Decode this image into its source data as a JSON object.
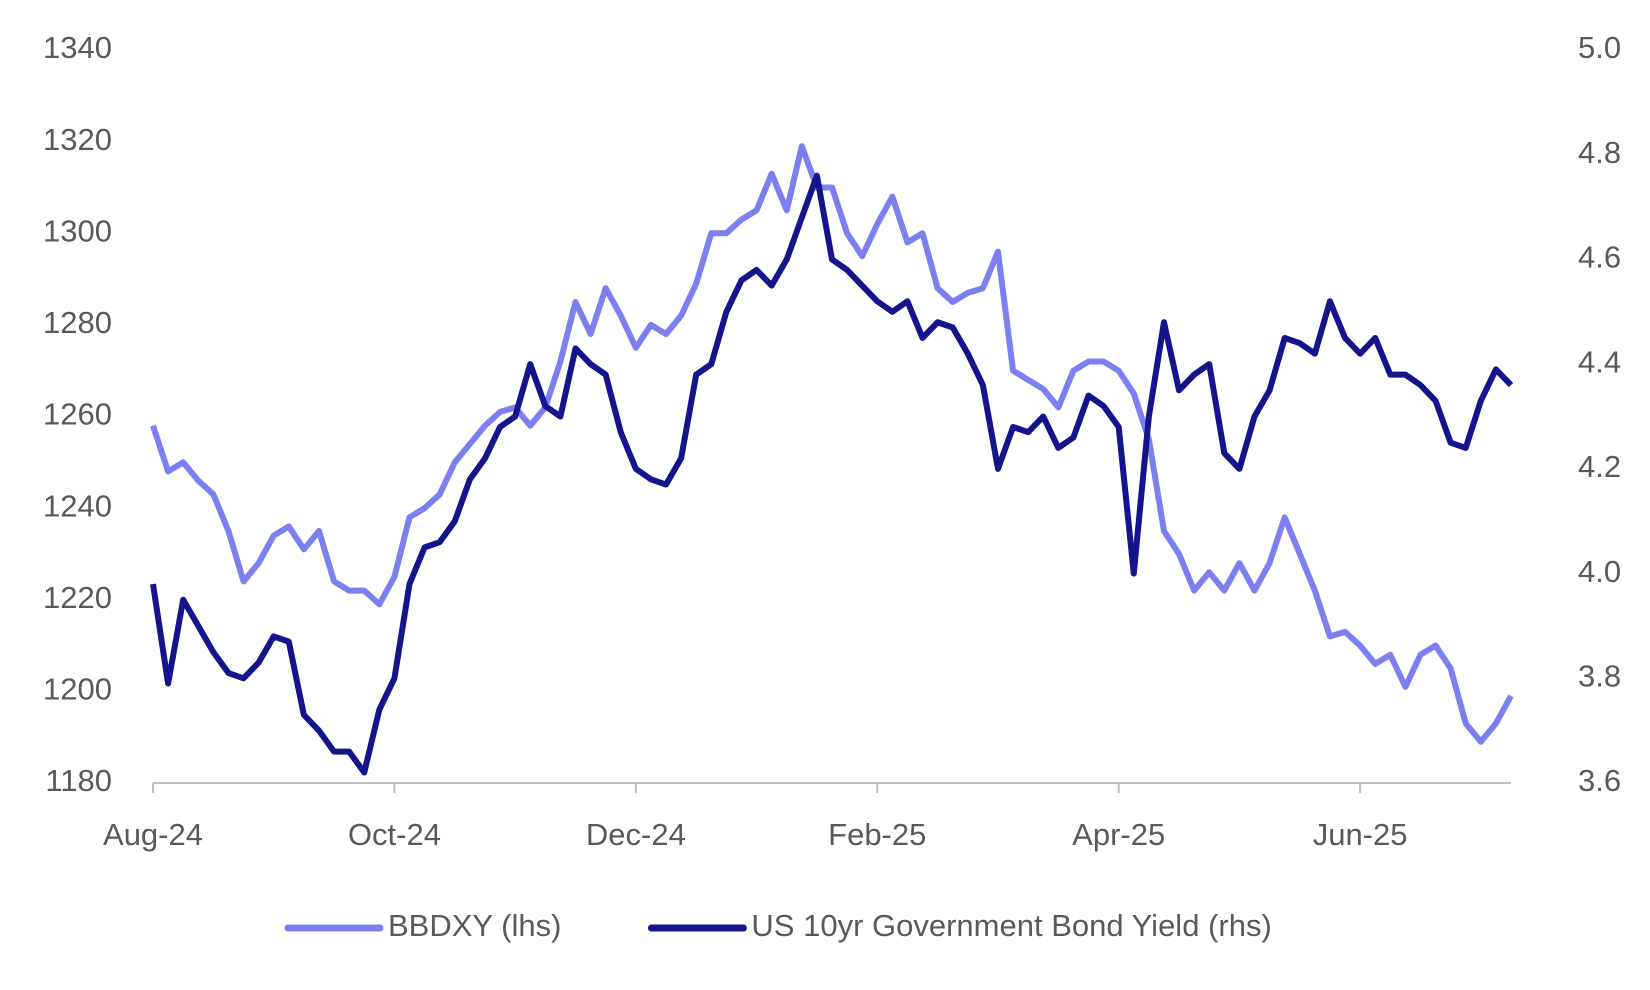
{
  "chart_data": {
    "type": "line",
    "categories": [
      "Aug-24",
      null,
      null,
      null,
      null,
      null,
      null,
      null,
      null,
      null,
      null,
      null,
      null,
      null,
      null,
      null,
      "Oct-24",
      null,
      null,
      null,
      null,
      null,
      null,
      null,
      null,
      null,
      null,
      null,
      null,
      null,
      null,
      null,
      "Dec-24",
      null,
      null,
      null,
      null,
      null,
      null,
      null,
      null,
      null,
      null,
      null,
      null,
      null,
      null,
      null,
      "Feb-25",
      null,
      null,
      null,
      null,
      null,
      null,
      null,
      null,
      null,
      null,
      null,
      null,
      null,
      null,
      null,
      "Apr-25",
      null,
      null,
      null,
      null,
      null,
      null,
      null,
      null,
      null,
      null,
      null,
      null,
      null,
      null,
      null,
      "Jun-25",
      null,
      null,
      null,
      null,
      null,
      null,
      null,
      null,
      null,
      null
    ],
    "series": [
      {
        "name": "BBDXY (lhs)",
        "color": "#7b7ff0",
        "axis": "y",
        "values": [
          1258,
          1248,
          1250,
          1246,
          1243,
          1235,
          1224,
          1228,
          1234,
          1236,
          1231,
          1235,
          1224,
          1222,
          1222,
          1219,
          1225,
          1238,
          1240,
          1243,
          1250,
          1254,
          1258,
          1261,
          1262,
          1258,
          1262,
          1272,
          1285,
          1278,
          1288,
          1282,
          1275,
          1280,
          1278,
          1282,
          1289,
          1300,
          1300,
          1303,
          1305,
          1313,
          1305,
          1319,
          1310,
          1310,
          1300,
          1295,
          1302,
          1308,
          1298,
          1300,
          1288,
          1285,
          1287,
          1288,
          1296,
          1270,
          1268,
          1266,
          1262,
          1270,
          1272,
          1272,
          1270,
          1265,
          1255,
          1235,
          1230,
          1222,
          1226,
          1222,
          1228,
          1222,
          1228,
          1238,
          1230,
          1222,
          1212,
          1213,
          1210,
          1206,
          1208,
          1201,
          1208,
          1210,
          1205,
          1193,
          1189,
          1193,
          1199
        ]
      },
      {
        "name": "US 10yr Government Bond Yield (rhs)",
        "color": "#14148c",
        "axis": "y2",
        "values": [
          3.98,
          3.79,
          3.95,
          3.9,
          3.85,
          3.81,
          3.8,
          3.83,
          3.88,
          3.87,
          3.73,
          3.7,
          3.66,
          3.66,
          3.62,
          3.74,
          3.8,
          3.98,
          4.05,
          4.06,
          4.1,
          4.18,
          4.22,
          4.28,
          4.3,
          4.4,
          4.32,
          4.3,
          4.43,
          4.4,
          4.38,
          4.27,
          4.2,
          4.18,
          4.17,
          4.22,
          4.38,
          4.4,
          4.5,
          4.56,
          4.58,
          4.55,
          4.6,
          4.68,
          4.76,
          4.6,
          4.58,
          4.55,
          4.52,
          4.5,
          4.52,
          4.45,
          4.48,
          4.47,
          4.42,
          4.36,
          4.2,
          4.28,
          4.27,
          4.3,
          4.24,
          4.26,
          4.34,
          4.32,
          4.28,
          4,
          4.3,
          4.48,
          4.35,
          4.38,
          4.4,
          4.23,
          4.2,
          4.3,
          4.35,
          4.45,
          4.44,
          4.42,
          4.52,
          4.45,
          4.42,
          4.45,
          4.38,
          4.38,
          4.36,
          4.33,
          4.25,
          4.24,
          4.33,
          4.39,
          4.36
        ]
      }
    ],
    "ylim": [
      1180,
      1340
    ],
    "yticks": [
      1180,
      1200,
      1220,
      1240,
      1260,
      1280,
      1300,
      1320,
      1340
    ],
    "y2lim": [
      3.6,
      5.0
    ],
    "y2ticks": [
      3.6,
      3.8,
      {
        "value": 4,
        "label": "4.0"
      },
      4.2,
      4.4,
      4.6,
      4.8,
      {
        "value": 5,
        "label": "5.0"
      }
    ],
    "legend": "bottom",
    "grid": false
  }
}
